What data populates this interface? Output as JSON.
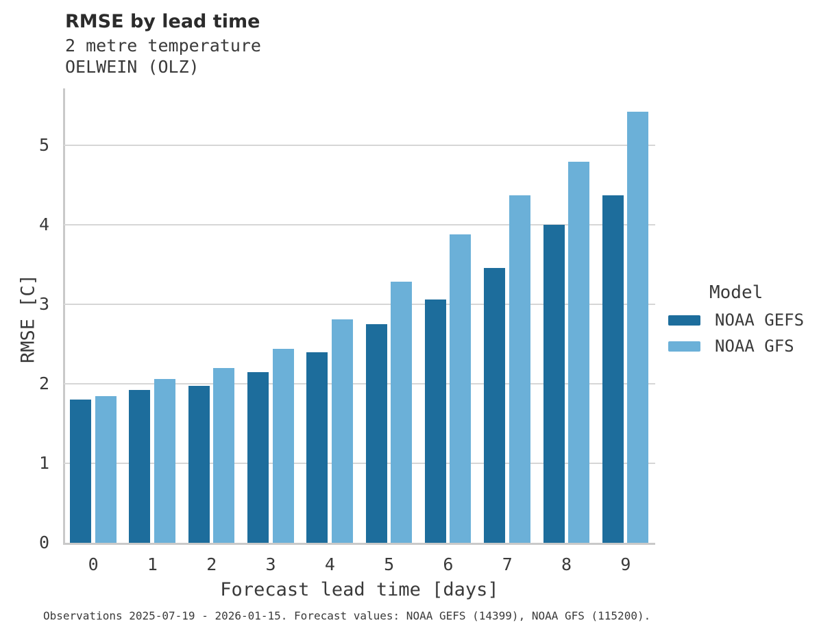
{
  "chart_data": {
    "type": "bar",
    "title": "RMSE by lead time",
    "subtitle1": "2 metre temperature",
    "subtitle2": "OELWEIN (OLZ)",
    "xlabel": "Forecast lead time [days]",
    "ylabel": "RMSE [C]",
    "categories": [
      "0",
      "1",
      "2",
      "3",
      "4",
      "5",
      "6",
      "7",
      "8",
      "9"
    ],
    "series": [
      {
        "name": "NOAA GEFS",
        "color": "#1d6d9c",
        "values": [
          1.8,
          1.92,
          1.98,
          2.15,
          2.4,
          2.75,
          3.06,
          3.46,
          4.0,
          4.37
        ]
      },
      {
        "name": "NOAA GFS",
        "color": "#6bb0d8",
        "values": [
          1.85,
          2.06,
          2.2,
          2.44,
          2.81,
          3.29,
          3.88,
          4.37,
          4.8,
          5.43
        ]
      }
    ],
    "ylim": [
      0,
      5.72
    ],
    "yticks": [
      0,
      1,
      2,
      3,
      4,
      5
    ],
    "grid": "horizontal",
    "legend_title": "Model",
    "legend_position": "right",
    "caption": "Observations 2025-07-19 - 2026-01-15. Forecast values: NOAA GEFS (14399), NOAA GFS (115200)."
  },
  "colors": {
    "gridline": "#d6d6d6",
    "spine": "#c9c9c9",
    "background": "#ffffff"
  }
}
